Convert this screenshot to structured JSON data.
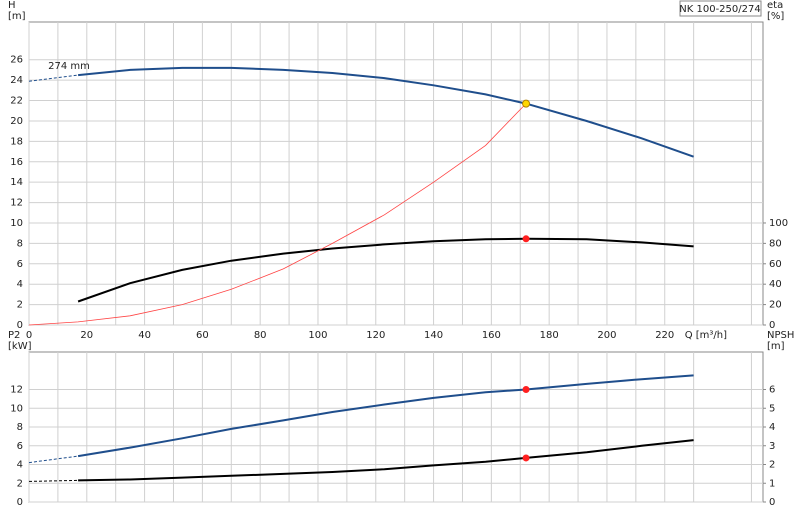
{
  "chart_data": [
    {
      "type": "line",
      "title": "NK 100-250/274",
      "ylabel": "H",
      "yunit": "[m]",
      "y2label": "eta",
      "y2unit": "[%]",
      "xlabel": "Q [m³/h]",
      "annotation": "274 mm",
      "xlim": [
        0,
        254
      ],
      "xticks": [
        0,
        20,
        40,
        60,
        80,
        100,
        120,
        140,
        160,
        180,
        200,
        220
      ],
      "ylim": [
        0,
        29.7
      ],
      "yticks": [
        0,
        2,
        4,
        6,
        8,
        10,
        12,
        14,
        16,
        18,
        20,
        22,
        24,
        26
      ],
      "y2lim": [
        0,
        297
      ],
      "y2ticks": [
        0,
        20,
        40,
        60,
        80,
        100
      ],
      "grid": true,
      "xticklabels": true,
      "series": [
        {
          "color": "#1f4e8c",
          "dash": true,
          "axis": "y",
          "x": [
            0,
            17
          ],
          "values": [
            23.9,
            24.5
          ]
        },
        {
          "color": "#1f4e8c",
          "dash": false,
          "axis": "y",
          "x": [
            17,
            35,
            53,
            70,
            88,
            105,
            123,
            140,
            158,
            172,
            193,
            212,
            230
          ],
          "values": [
            24.5,
            25,
            25.2,
            25.2,
            25,
            24.7,
            24.2,
            23.5,
            22.6,
            21.7,
            20,
            18.3,
            16.5
          ]
        },
        {
          "color": "#000000",
          "dash": false,
          "axis": "y2",
          "x": [
            17,
            35,
            53,
            70,
            88,
            105,
            123,
            140,
            158,
            172,
            193,
            212,
            230
          ],
          "values": [
            23,
            41,
            54,
            63,
            70,
            75,
            79,
            82,
            84,
            84.5,
            84,
            81,
            77
          ]
        },
        {
          "color": "#ff4444",
          "dash": false,
          "thin": true,
          "axis": "y",
          "x": [
            0,
            17,
            35,
            53,
            70,
            88,
            105,
            123,
            140,
            158,
            172
          ],
          "values": [
            0,
            0.3,
            0.9,
            2,
            3.5,
            5.5,
            8,
            10.8,
            14,
            17.6,
            21.7
          ]
        }
      ],
      "points": [
        {
          "x": 172,
          "y": 21.7,
          "axis": "y",
          "color": "#ffd700"
        },
        {
          "x": 172,
          "y": 84.5,
          "axis": "y2",
          "color": "#ff2020"
        }
      ]
    },
    {
      "type": "line",
      "ylabel": "P2",
      "yunit": "[kW]",
      "y2label": "NPSH",
      "y2unit": "[m]",
      "xlim": [
        0,
        254
      ],
      "xticks": [
        0,
        20,
        40,
        60,
        80,
        100,
        120,
        140,
        160,
        180,
        200,
        220
      ],
      "ylim": [
        0,
        16
      ],
      "yticks": [
        0,
        2,
        4,
        6,
        8,
        10,
        12
      ],
      "y2lim": [
        0,
        8
      ],
      "y2ticks": [
        0,
        1,
        2,
        3,
        4,
        5,
        6
      ],
      "grid": true,
      "xticklabels": false,
      "series": [
        {
          "color": "#1f4e8c",
          "dash": true,
          "axis": "y",
          "x": [
            0,
            17
          ],
          "values": [
            4.2,
            4.9
          ]
        },
        {
          "color": "#1f4e8c",
          "dash": false,
          "axis": "y",
          "x": [
            17,
            35,
            53,
            70,
            88,
            105,
            123,
            140,
            158,
            172,
            193,
            212,
            230
          ],
          "values": [
            4.9,
            5.8,
            6.8,
            7.8,
            8.7,
            9.6,
            10.4,
            11.1,
            11.7,
            12,
            12.6,
            13.1,
            13.5
          ]
        },
        {
          "color": "#000000",
          "dash": true,
          "axis": "y2",
          "x": [
            0,
            17
          ],
          "values": [
            1.1,
            1.15
          ]
        },
        {
          "color": "#000000",
          "dash": false,
          "axis": "y2",
          "x": [
            17,
            35,
            53,
            70,
            88,
            105,
            123,
            140,
            158,
            172,
            193,
            212,
            230
          ],
          "values": [
            1.15,
            1.2,
            1.3,
            1.4,
            1.5,
            1.6,
            1.75,
            1.95,
            2.15,
            2.35,
            2.65,
            3,
            3.3
          ]
        }
      ],
      "points": [
        {
          "x": 172,
          "y": 12,
          "axis": "y",
          "color": "#ff2020"
        },
        {
          "x": 172,
          "y": 2.35,
          "axis": "y2",
          "color": "#ff2020"
        }
      ]
    }
  ]
}
